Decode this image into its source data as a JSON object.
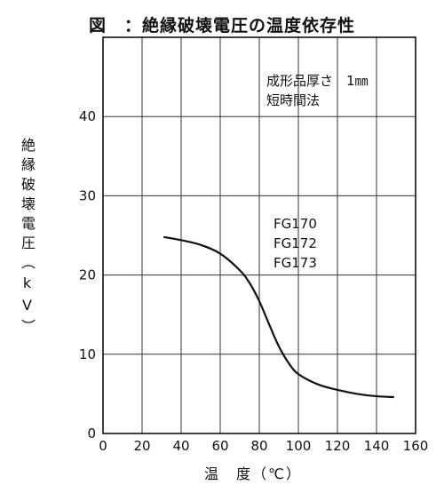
{
  "chart_data": {
    "type": "line",
    "title": "図　：絶縁破壊電圧の温度依存性",
    "xlabel": "温　度（℃）",
    "ylabel": "絶縁破壊電圧（kV）",
    "xlim": [
      0,
      160
    ],
    "ylim": [
      0,
      40
    ],
    "xticks": [
      0,
      20,
      40,
      60,
      80,
      100,
      120,
      140,
      160
    ],
    "yticks": [
      0,
      10,
      20,
      30,
      40
    ],
    "ymax_gridline": 50,
    "grid": true,
    "annotation": [
      "成形品厚さ　1㎜",
      "短時間法"
    ],
    "series_labels": [
      "FG170",
      "FG172",
      "FG173"
    ],
    "series": [
      {
        "x": [
          31,
          40,
          50,
          60,
          70,
          75,
          80,
          85,
          90,
          95,
          100,
          110,
          120,
          130,
          140,
          149
        ],
        "y": [
          24.8,
          24.4,
          23.8,
          22.7,
          20.6,
          19.0,
          16.7,
          13.8,
          11.0,
          8.9,
          7.5,
          6.2,
          5.5,
          5.0,
          4.7,
          4.6
        ]
      }
    ]
  }
}
